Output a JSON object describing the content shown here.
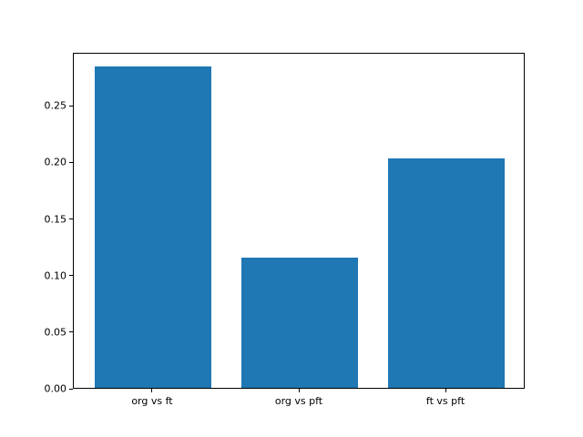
{
  "chart_data": {
    "type": "bar",
    "categories": [
      "org vs ft",
      "org vs pft",
      "ft vs pft"
    ],
    "values": [
      0.284,
      0.115,
      0.203
    ],
    "yticks": [
      "0.00",
      "0.05",
      "0.10",
      "0.15",
      "0.20",
      "0.25"
    ],
    "ylim": [
      0,
      0.297
    ],
    "xlim": [
      -0.54,
      2.54
    ],
    "bar_width": 0.8,
    "bar_color": "#1f77b4",
    "axis_color": "#000000",
    "background_color": "#ffffff",
    "grid": false,
    "legend": "none"
  }
}
